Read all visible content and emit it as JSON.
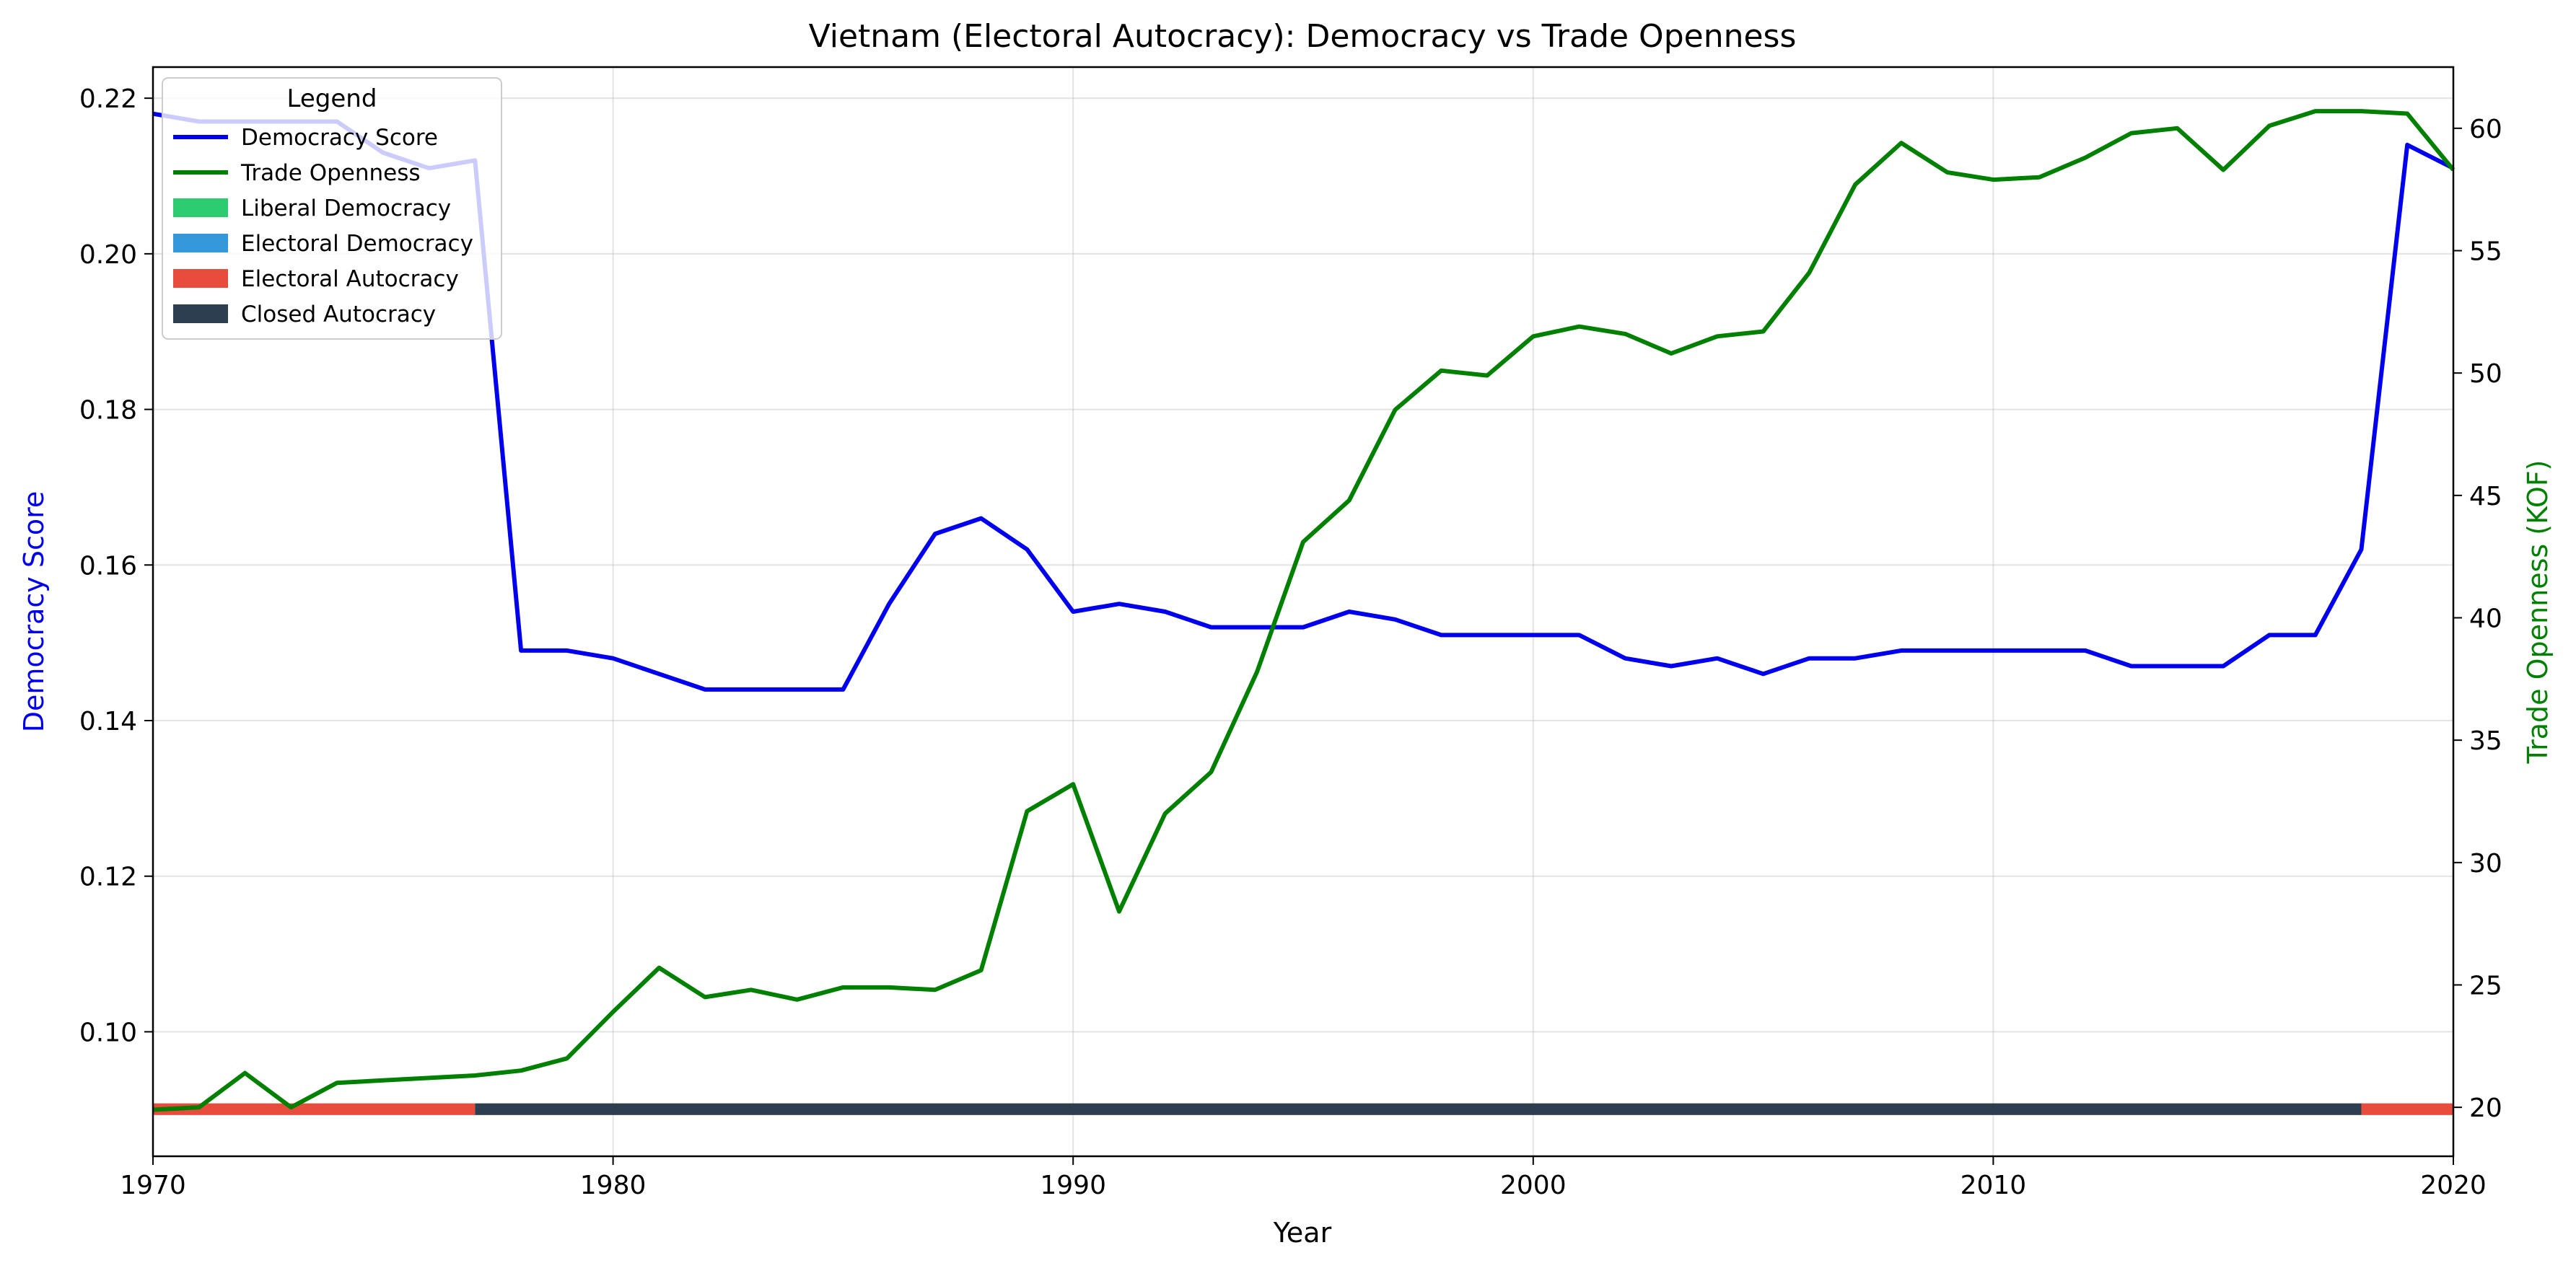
{
  "chart_data": {
    "type": "line",
    "title": "Vietnam (Electoral Autocracy): Democracy vs Trade Openness",
    "xlabel": "Year",
    "ylabel_left": "Democracy Score",
    "ylabel_right": "Trade Openness (KOF)",
    "xlim": [
      1970,
      2020
    ],
    "ylim_left": [
      0.084,
      0.224
    ],
    "ylim_right": [
      18.0,
      62.5
    ],
    "x_ticks": [
      1970,
      1980,
      1990,
      2000,
      2010,
      2020
    ],
    "y_left_ticks": [
      0.1,
      0.12,
      0.14,
      0.16,
      0.18,
      0.2,
      0.22
    ],
    "y_left_tick_labels": [
      "0.10",
      "0.12",
      "0.14",
      "0.16",
      "0.18",
      "0.20",
      "0.22"
    ],
    "y_right_ticks": [
      20,
      25,
      30,
      35,
      40,
      45,
      50,
      55,
      60
    ],
    "grid": true,
    "legend_placement": "upper-left",
    "legend": {
      "title": "Legend",
      "entries": [
        {
          "label": "Democracy Score",
          "kind": "line",
          "color": "#0000ee"
        },
        {
          "label": "Trade Openness",
          "kind": "line",
          "color": "#008000"
        },
        {
          "label": "Liberal Democracy",
          "kind": "patch",
          "color": "#2ecc71"
        },
        {
          "label": "Electoral Democracy",
          "kind": "patch",
          "color": "#3498db"
        },
        {
          "label": "Electoral Autocracy",
          "kind": "patch",
          "color": "#e74c3c"
        },
        {
          "label": "Closed Autocracy",
          "kind": "patch",
          "color": "#2c3e50"
        }
      ]
    },
    "series": [
      {
        "name": "Democracy Score",
        "axis": "left",
        "color": "#0000ee",
        "x": [
          1970,
          1971,
          1972,
          1973,
          1974,
          1975,
          1976,
          1977,
          1978,
          1979,
          1980,
          1981,
          1982,
          1983,
          1984,
          1985,
          1986,
          1987,
          1988,
          1989,
          1990,
          1991,
          1992,
          1993,
          1994,
          1995,
          1996,
          1997,
          1998,
          1999,
          2000,
          2001,
          2002,
          2003,
          2004,
          2005,
          2006,
          2007,
          2008,
          2009,
          2010,
          2011,
          2012,
          2013,
          2014,
          2015,
          2016,
          2017,
          2018,
          2019,
          2020
        ],
        "values": [
          0.218,
          0.217,
          0.217,
          0.217,
          0.217,
          0.213,
          0.211,
          0.212,
          0.149,
          0.149,
          0.148,
          0.146,
          0.144,
          0.144,
          0.144,
          0.144,
          0.155,
          0.164,
          0.166,
          0.162,
          0.154,
          0.155,
          0.154,
          0.152,
          0.152,
          0.152,
          0.154,
          0.153,
          0.151,
          0.151,
          0.151,
          0.151,
          0.148,
          0.147,
          0.148,
          0.146,
          0.148,
          0.148,
          0.149,
          0.149,
          0.149,
          0.149,
          0.149,
          0.147,
          0.147,
          0.147,
          0.151,
          0.151,
          0.162,
          0.214,
          0.211
        ]
      },
      {
        "name": "Trade Openness",
        "axis": "right",
        "color": "#008000",
        "x": [
          1970,
          1971,
          1972,
          1973,
          1974,
          1975,
          1976,
          1977,
          1978,
          1979,
          1980,
          1981,
          1982,
          1983,
          1984,
          1985,
          1986,
          1987,
          1988,
          1989,
          1990,
          1991,
          1992,
          1993,
          1994,
          1995,
          1996,
          1997,
          1998,
          1999,
          2000,
          2001,
          2002,
          2003,
          2004,
          2005,
          2006,
          2007,
          2008,
          2009,
          2010,
          2011,
          2012,
          2013,
          2014,
          2015,
          2016,
          2017,
          2018,
          2019,
          2020
        ],
        "values": [
          19.9,
          20.0,
          21.4,
          20.0,
          21.0,
          21.1,
          21.2,
          21.3,
          21.5,
          22.0,
          23.9,
          25.7,
          24.5,
          24.8,
          24.4,
          24.9,
          24.9,
          24.8,
          25.6,
          32.1,
          33.2,
          28.0,
          32.0,
          33.7,
          37.8,
          43.1,
          44.8,
          48.5,
          50.1,
          49.9,
          51.5,
          51.9,
          51.6,
          50.8,
          51.5,
          51.7,
          54.1,
          57.7,
          59.4,
          58.2,
          57.9,
          58.0,
          58.8,
          59.8,
          60.0,
          58.3,
          60.1,
          60.7,
          60.7,
          60.6,
          58.3
        ]
      }
    ],
    "regime_bands": [
      {
        "label": "Electoral Autocracy",
        "start": 1970,
        "end": 1977,
        "color": "#e74c3c"
      },
      {
        "label": "Closed Autocracy",
        "start": 1977,
        "end": 2018,
        "color": "#2c3e50"
      },
      {
        "label": "Electoral Autocracy",
        "start": 2018,
        "end": 2020,
        "color": "#e74c3c"
      }
    ]
  }
}
